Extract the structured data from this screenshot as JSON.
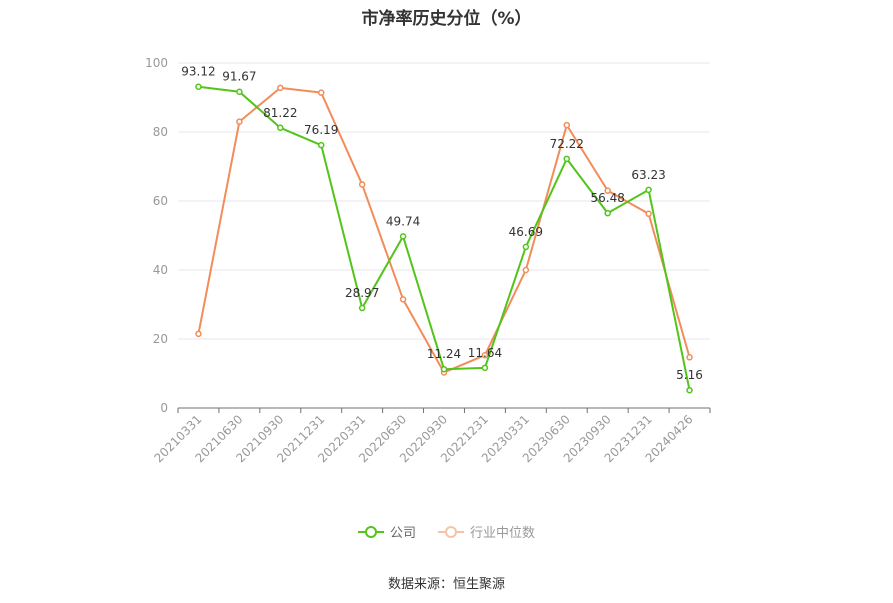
{
  "chart_data": {
    "type": "line",
    "title": "市净率历史分位（%）",
    "categories": [
      "20210331",
      "20210630",
      "20210930",
      "20211231",
      "20220331",
      "20220630",
      "20220930",
      "20221231",
      "20230331",
      "20230630",
      "20230930",
      "20231231",
      "20240426"
    ],
    "series": [
      {
        "name": "公司",
        "color": "#52c41a",
        "values": [
          93.12,
          91.67,
          81.22,
          76.19,
          28.97,
          49.74,
          11.24,
          11.64,
          46.69,
          72.22,
          56.48,
          63.23,
          5.16
        ],
        "labels": [
          "93.12",
          "91.67",
          "81.22",
          "76.19",
          "28.97",
          "49.74",
          "11.24",
          "11.64",
          "46.69",
          "72.22",
          "56.48",
          "63.23",
          "5.16"
        ]
      },
      {
        "name": "行业中位数",
        "color": "#f28c5a",
        "values": [
          21.5,
          83.0,
          92.8,
          91.4,
          64.8,
          31.5,
          10.3,
          15.3,
          40.0,
          82.0,
          63.0,
          56.3,
          14.7
        ]
      }
    ],
    "ylim": [
      0,
      100
    ],
    "yticks": [
      "0",
      "20",
      "40",
      "60",
      "80",
      "100"
    ],
    "grid": true,
    "legend_position": "bottom"
  },
  "source": "数据来源：恒生聚源"
}
